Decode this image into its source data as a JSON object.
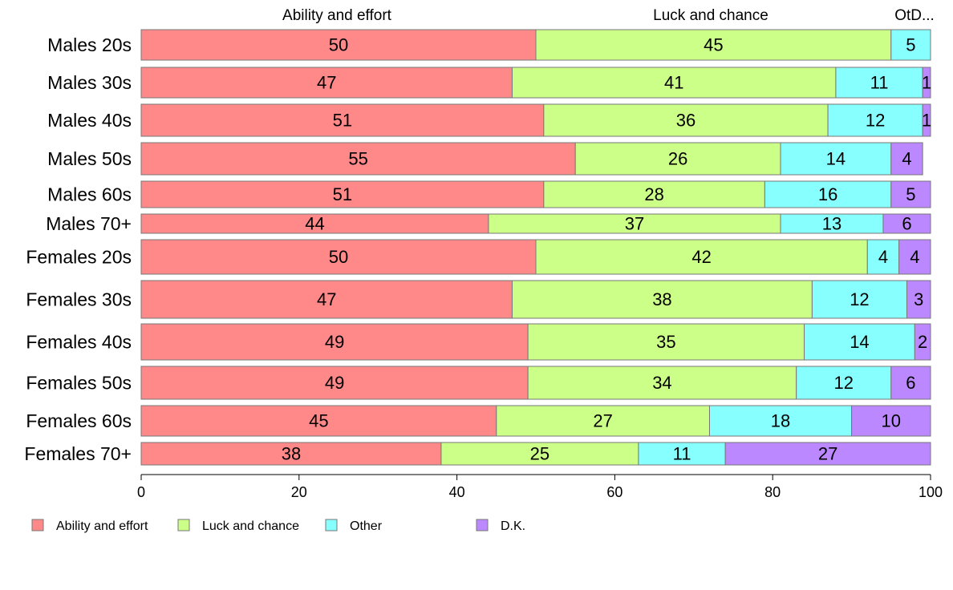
{
  "chart_data": {
    "type": "bar",
    "orientation": "horizontal",
    "stacked": true,
    "categories": [
      "Males 20s",
      "Males 30s",
      "Males 40s",
      "Males 50s",
      "Males 60s",
      "Males 70+",
      "Females 20s",
      "Females 30s",
      "Females 40s",
      "Females 50s",
      "Females 60s",
      "Females 70+"
    ],
    "series": [
      {
        "name": "Ability and effort",
        "color": "#ff8888",
        "values": [
          50,
          47,
          51,
          55,
          51,
          44,
          50,
          47,
          49,
          49,
          45,
          38
        ]
      },
      {
        "name": "Luck and chance",
        "color": "#ccff88",
        "values": [
          45,
          41,
          36,
          26,
          28,
          37,
          42,
          38,
          35,
          34,
          27,
          25
        ]
      },
      {
        "name": "Other",
        "color": "#88ffff",
        "values": [
          5,
          11,
          12,
          14,
          16,
          13,
          4,
          12,
          14,
          12,
          18,
          11
        ]
      },
      {
        "name": "D.K.",
        "color": "#bb88ff",
        "values": [
          0,
          1,
          1,
          4,
          5,
          6,
          4,
          3,
          2,
          6,
          10,
          27
        ]
      }
    ],
    "top_headers": [
      "Ability and effort",
      "Luck and chance",
      "OtD..."
    ],
    "xlim": [
      0,
      100
    ],
    "xticks": [
      "0",
      "20",
      "40",
      "60",
      "80",
      "100"
    ],
    "grid": false,
    "legend_position": "bottom-left"
  }
}
